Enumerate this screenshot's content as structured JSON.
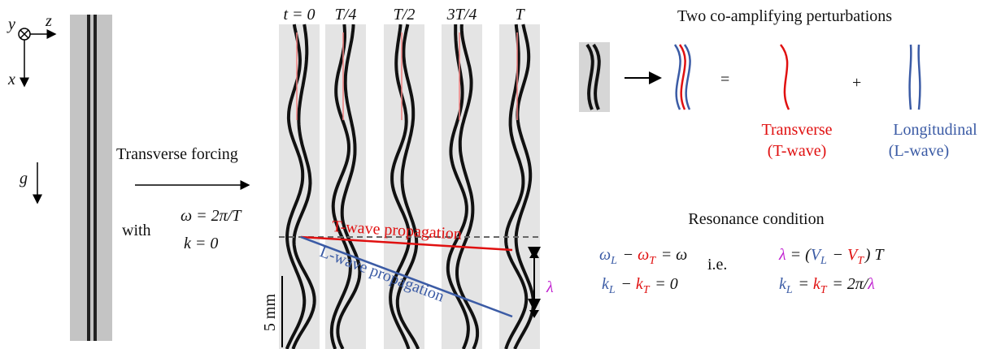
{
  "axes": {
    "y": "y",
    "z": "z",
    "x": "x",
    "g": "g"
  },
  "forcing": {
    "title": "Transverse forcing",
    "with": "with",
    "omega": "ω = 2π/T",
    "k": "k = 0"
  },
  "frames": {
    "labels": [
      "t = 0",
      "T/4",
      "T/2",
      "3T/4",
      "T"
    ],
    "t_wave": "T-wave propagation",
    "l_wave": "L-wave propagation",
    "scale": "5 mm",
    "lambda": "λ"
  },
  "perturbations": {
    "title": "Two co-amplifying perturbations",
    "equals": "=",
    "plus": "+",
    "transverse": "Transverse",
    "t_wave": "(T-wave)",
    "longitudinal": "Longitudinal",
    "l_wave": "(L-wave)"
  },
  "resonance": {
    "title": "Resonance condition",
    "ie": "i.e.",
    "eq1": [
      {
        "t": "ω",
        "sub": "L",
        "color": "#3b5ba5"
      },
      {
        "t": " − "
      },
      {
        "t": "ω",
        "sub": "T",
        "color": "#e01010"
      },
      {
        "t": " = ω"
      }
    ],
    "eq2": [
      {
        "t": "k",
        "sub": "L",
        "color": "#3b5ba5"
      },
      {
        "t": " − "
      },
      {
        "t": "k",
        "sub": "T",
        "color": "#e01010"
      },
      {
        "t": " = 0"
      }
    ],
    "eq3": [
      {
        "t": "λ",
        "color": "#c020d0"
      },
      {
        "t": " = ("
      },
      {
        "t": "V",
        "sub": "L",
        "color": "#3b5ba5"
      },
      {
        "t": " − "
      },
      {
        "t": "V",
        "sub": "T",
        "color": "#e01010"
      },
      {
        "t": ") T"
      }
    ],
    "eq4": [
      {
        "t": "k",
        "sub": "L",
        "color": "#3b5ba5"
      },
      {
        "t": " = "
      },
      {
        "t": "k",
        "sub": "T",
        "color": "#e01010"
      },
      {
        "t": " = 2π/"
      },
      {
        "t": "λ",
        "color": "#c020d0"
      }
    ]
  }
}
